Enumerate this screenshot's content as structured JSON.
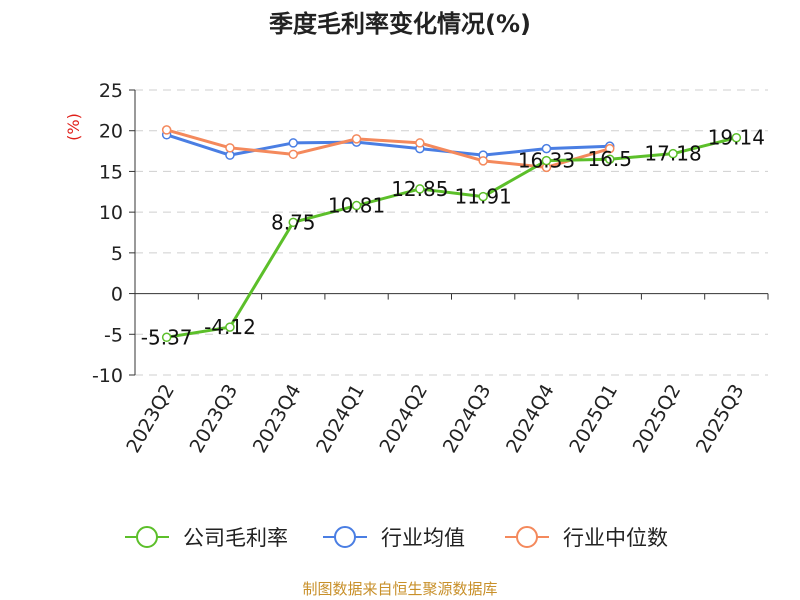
{
  "chart_data": {
    "type": "line",
    "title": "季度毛利率变化情况(%)",
    "ylabel": "(%)",
    "ylim": [
      -10,
      25
    ],
    "yticks": [
      "25",
      "20",
      "15",
      "10",
      "5",
      "0",
      "-5",
      "-10"
    ],
    "grid": true,
    "legend_position": "bottom",
    "categories": [
      "2023Q2",
      "2023Q3",
      "2023Q4",
      "2024Q1",
      "2024Q2",
      "2024Q3",
      "2024Q4",
      "2025Q1",
      "2025Q2",
      "2025Q3"
    ],
    "series": [
      {
        "name": "公司毛利率",
        "color": "#5cbf2a",
        "values": [
          -5.37,
          -4.12,
          8.75,
          10.81,
          12.85,
          11.91,
          16.33,
          16.5,
          17.18,
          19.14
        ],
        "labels": [
          "-5.37",
          "-4.12",
          "8.75",
          "10.81",
          "12.85",
          "11.91",
          "16.33",
          "16.5",
          "17.18",
          "19.14"
        ]
      },
      {
        "name": "行业均值",
        "color": "#4a7ee3",
        "values": [
          19.5,
          17.0,
          18.5,
          18.6,
          17.8,
          17.0,
          17.8,
          18.1,
          null,
          null
        ]
      },
      {
        "name": "行业中位数",
        "color": "#f4895c",
        "values": [
          20.1,
          17.9,
          17.1,
          19.0,
          18.5,
          16.3,
          15.5,
          17.8,
          null,
          null
        ]
      }
    ]
  },
  "colors": {
    "unit_label": "#e0201a",
    "source": "#c8902a",
    "axis": "#333333",
    "grid": "#cfcfcf"
  },
  "footer": {
    "source": "制图数据来自恒生聚源数据库"
  }
}
